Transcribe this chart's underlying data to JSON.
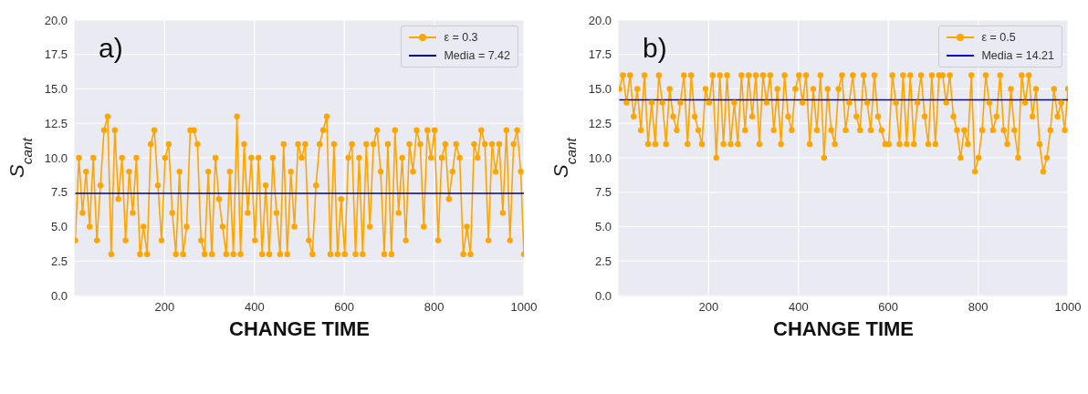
{
  "chart_data": [
    {
      "type": "line",
      "annotations": [
        "a)"
      ],
      "xlabel": "CHANGE TIME",
      "ylabel": "S$_{cant}$",
      "xlim": [
        0,
        1000
      ],
      "xticks": [
        200,
        400,
        600,
        800,
        1000
      ],
      "ylim": [
        0,
        20
      ],
      "yticks": [
        {
          "value": 0,
          "label": "0.0"
        },
        {
          "value": 2.5,
          "label": "2.5"
        },
        {
          "value": 5,
          "label": "5.0"
        },
        {
          "value": 7.5,
          "label": "7.5"
        },
        {
          "value": 10,
          "label": "10.0"
        },
        {
          "value": 12.5,
          "label": "12.5"
        },
        {
          "value": 15,
          "label": "15.0"
        },
        {
          "value": 17.5,
          "label": "17.5"
        },
        {
          "value": 20,
          "label": "20.0"
        }
      ],
      "grid": true,
      "legend": "top right",
      "line_style": "solid",
      "x": [
        1,
        9,
        17,
        25,
        33,
        41,
        49,
        57,
        65,
        73,
        81,
        89,
        97,
        105,
        113,
        121,
        129,
        137,
        145,
        153,
        161,
        169,
        177,
        185,
        193,
        201,
        209,
        217,
        225,
        233,
        241,
        249,
        257,
        265,
        273,
        281,
        289,
        297,
        305,
        313,
        321,
        329,
        337,
        345,
        353,
        361,
        369,
        377,
        385,
        393,
        401,
        409,
        417,
        425,
        433,
        441,
        449,
        457,
        465,
        473,
        481,
        489,
        497,
        505,
        513,
        521,
        529,
        537,
        545,
        553,
        561,
        569,
        577,
        585,
        593,
        601,
        609,
        617,
        625,
        633,
        641,
        649,
        657,
        665,
        673,
        681,
        689,
        697,
        705,
        713,
        721,
        729,
        737,
        745,
        753,
        761,
        769,
        777,
        785,
        793,
        801,
        809,
        817,
        825,
        833,
        841,
        849,
        857,
        865,
        873,
        881,
        889,
        897,
        905,
        913,
        921,
        929,
        937,
        945,
        953,
        961,
        969,
        977,
        985,
        993,
        1000
      ],
      "series": [
        {
          "name": "ε = 0.3",
          "color": "#ffa500",
          "marker": "circle",
          "values": [
            4,
            10,
            6,
            9,
            5,
            10,
            4,
            8,
            12,
            13,
            3,
            12,
            7,
            10,
            4,
            9,
            6,
            10,
            3,
            5,
            3,
            11,
            12,
            8,
            4,
            10,
            11,
            6,
            3,
            9,
            3,
            5,
            12,
            12,
            11,
            4,
            3,
            9,
            3,
            10,
            7,
            5,
            3,
            9,
            3,
            13,
            3,
            11,
            6,
            10,
            4,
            10,
            3,
            8,
            3,
            10,
            6,
            3,
            11,
            3,
            9,
            5,
            11,
            10,
            11,
            4,
            3,
            8,
            11,
            12,
            13,
            3,
            11,
            3,
            7,
            3,
            10,
            11,
            3,
            10,
            3,
            11,
            5,
            11,
            12,
            9,
            3,
            11,
            3,
            12,
            6,
            10,
            4,
            11,
            9,
            12,
            11,
            5,
            12,
            10,
            12,
            4,
            10,
            11,
            7,
            9,
            11,
            10,
            3,
            5,
            3,
            11,
            10,
            12,
            11,
            4,
            11,
            9,
            11,
            6,
            12,
            4,
            11,
            12,
            9,
            3
          ]
        }
      ],
      "ref_lines": [
        {
          "axis": "y",
          "value": 7.42,
          "label": "Media = 7.42",
          "color": "#00008b"
        }
      ]
    },
    {
      "type": "line",
      "annotations": [
        "b)"
      ],
      "xlabel": "CHANGE TIME",
      "ylabel": "S$_{cant}$",
      "xlim": [
        0,
        1000
      ],
      "xticks": [
        200,
        400,
        600,
        800,
        1000
      ],
      "ylim": [
        0,
        20
      ],
      "yticks": [
        {
          "value": 0,
          "label": "0.0"
        },
        {
          "value": 2.5,
          "label": "2.5"
        },
        {
          "value": 5,
          "label": "5.0"
        },
        {
          "value": 7.5,
          "label": "7.5"
        },
        {
          "value": 10,
          "label": "10.0"
        },
        {
          "value": 12.5,
          "label": "12.5"
        },
        {
          "value": 15,
          "label": "15.0"
        },
        {
          "value": 17.5,
          "label": "17.5"
        },
        {
          "value": 20,
          "label": "20.0"
        }
      ],
      "grid": true,
      "legend": "top right",
      "line_style": "solid",
      "x": [
        1,
        9,
        17,
        25,
        33,
        41,
        49,
        57,
        65,
        73,
        81,
        89,
        97,
        105,
        113,
        121,
        129,
        137,
        145,
        153,
        161,
        169,
        177,
        185,
        193,
        201,
        209,
        217,
        225,
        233,
        241,
        249,
        257,
        265,
        273,
        281,
        289,
        297,
        305,
        313,
        321,
        329,
        337,
        345,
        353,
        361,
        369,
        377,
        385,
        393,
        401,
        409,
        417,
        425,
        433,
        441,
        449,
        457,
        465,
        473,
        481,
        489,
        497,
        505,
        513,
        521,
        529,
        537,
        545,
        553,
        561,
        569,
        577,
        585,
        593,
        601,
        609,
        617,
        625,
        633,
        641,
        649,
        657,
        665,
        673,
        681,
        689,
        697,
        705,
        713,
        721,
        729,
        737,
        745,
        753,
        761,
        769,
        777,
        785,
        793,
        801,
        809,
        817,
        825,
        833,
        841,
        849,
        857,
        865,
        873,
        881,
        889,
        897,
        905,
        913,
        921,
        929,
        937,
        945,
        953,
        961,
        969,
        977,
        985,
        993,
        1000
      ],
      "series": [
        {
          "name": "ε = 0.5",
          "color": "#ffa500",
          "marker": "circle",
          "values": [
            15,
            16,
            14,
            16,
            13,
            15,
            12,
            16,
            11,
            14,
            11,
            16,
            14,
            11,
            15,
            13,
            12,
            14,
            16,
            11,
            16,
            13,
            12,
            11,
            15,
            14,
            16,
            10,
            16,
            11,
            16,
            11,
            14,
            11,
            16,
            12,
            16,
            13,
            16,
            11,
            16,
            14,
            16,
            12,
            15,
            11,
            16,
            13,
            12,
            15,
            16,
            14,
            16,
            11,
            15,
            12,
            16,
            10,
            15,
            12,
            11,
            15,
            16,
            12,
            14,
            16,
            13,
            12,
            16,
            14,
            12,
            16,
            13,
            12,
            11,
            11,
            16,
            14,
            11,
            16,
            11,
            16,
            11,
            14,
            16,
            13,
            11,
            16,
            11,
            16,
            16,
            14,
            16,
            13,
            12,
            10,
            12,
            11,
            16,
            9,
            10,
            12,
            16,
            14,
            12,
            13,
            16,
            12,
            11,
            15,
            12,
            10,
            16,
            14,
            16,
            13,
            15,
            11,
            9,
            10,
            12,
            15,
            13,
            14,
            12,
            15
          ]
        }
      ],
      "ref_lines": [
        {
          "axis": "y",
          "value": 14.21,
          "label": "Media = 14.21",
          "color": "#0000cd"
        }
      ]
    }
  ]
}
